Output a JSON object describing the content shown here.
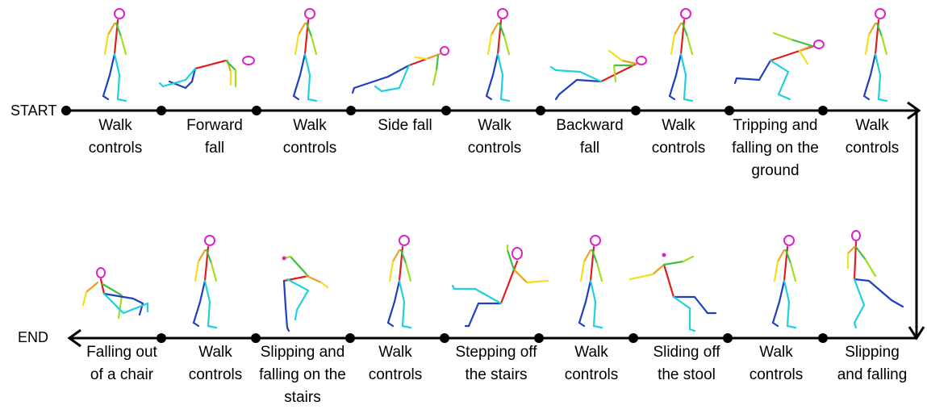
{
  "diagram": {
    "start_label": "START",
    "end_label": "END",
    "top_row": [
      {
        "label": "Walk\ncontrols",
        "pose": "walk"
      },
      {
        "label": "Forward\nfall",
        "pose": "forward-fall"
      },
      {
        "label": "Walk\ncontrols",
        "pose": "walk"
      },
      {
        "label": "Side fall",
        "pose": "side-fall"
      },
      {
        "label": "Walk\ncontrols",
        "pose": "walk"
      },
      {
        "label": "Backward\nfall",
        "pose": "backward-fall"
      },
      {
        "label": "Walk\ncontrols",
        "pose": "walk"
      },
      {
        "label": "Tripping and\nfalling on the\nground",
        "pose": "tripping"
      },
      {
        "label": "Walk\ncontrols",
        "pose": "walk"
      }
    ],
    "bottom_row": [
      {
        "label": "Falling out\nof a chair",
        "pose": "chair-fall"
      },
      {
        "label": "Walk\ncontrols",
        "pose": "walk"
      },
      {
        "label": "Slipping and\nfalling on the\nstairs",
        "pose": "stairs-slip"
      },
      {
        "label": "Walk\ncontrols",
        "pose": "walk"
      },
      {
        "label": "Stepping off\nthe stairs",
        "pose": "step-off"
      },
      {
        "label": "Walk\ncontrols",
        "pose": "walk"
      },
      {
        "label": "Sliding off\nthe stool",
        "pose": "stool-slide"
      },
      {
        "label": "Walk\ncontrols",
        "pose": "walk"
      },
      {
        "label": "Slipping\nand falling",
        "pose": "slip-fall"
      }
    ],
    "colors": {
      "head": "#e020c8",
      "spine": "#e02020",
      "arm_left": "#f0a020",
      "arm_left2": "#f0e020",
      "arm_right": "#40c040",
      "arm_right2": "#a0e020",
      "leg_left": "#2040c0",
      "leg_right": "#20d0e0",
      "line": "#000000"
    }
  }
}
